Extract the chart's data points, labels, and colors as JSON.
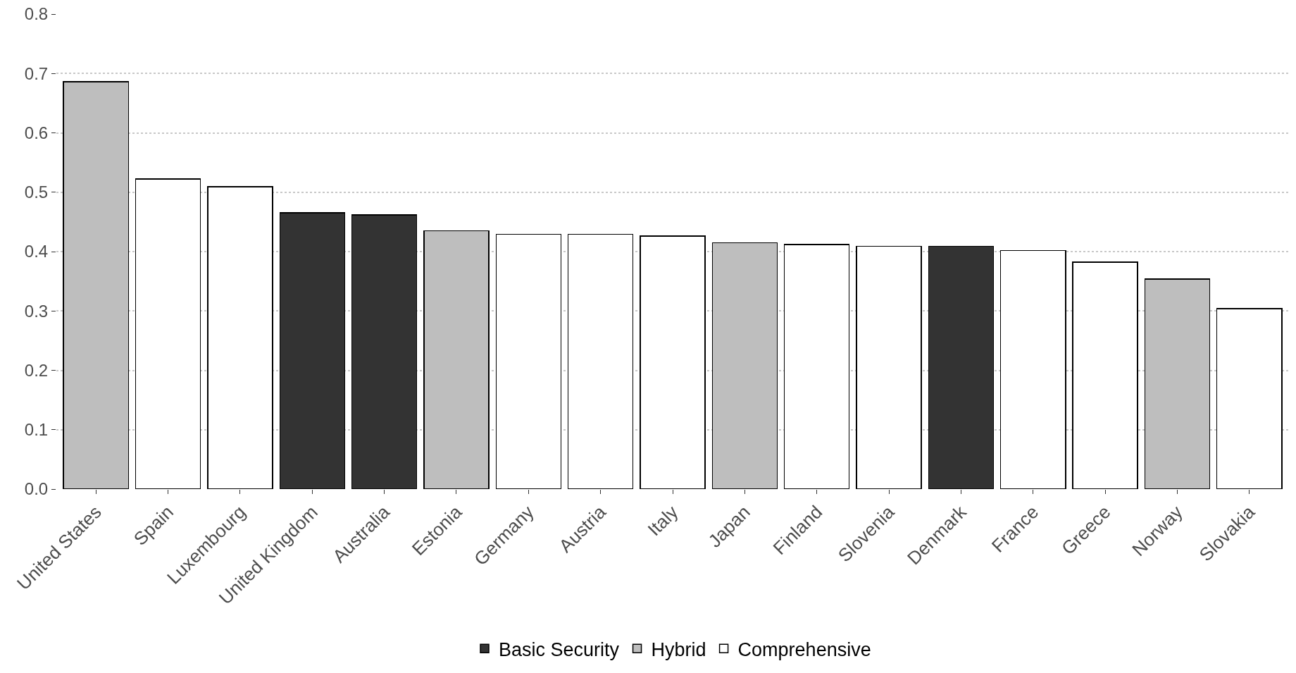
{
  "chart_data": {
    "type": "bar",
    "stacked": true,
    "categories": [
      "United States",
      "Spain",
      "Luxembourg",
      "United Kingdom",
      "Australia",
      "Estonia",
      "Germany",
      "Austria",
      "Italy",
      "Japan",
      "Finland",
      "Slovenia",
      "Denmark",
      "France",
      "Greece",
      "Norway",
      "Slovakia"
    ],
    "series": [
      {
        "name": "Basic Security",
        "color": "#333333",
        "values": [
          null,
          null,
          null,
          0.465,
          0.462,
          null,
          null,
          null,
          null,
          null,
          null,
          null,
          0.409,
          null,
          null,
          null,
          null
        ]
      },
      {
        "name": "Hybrid",
        "color": "#bebebe",
        "values": [
          0.686,
          null,
          null,
          null,
          null,
          0.435,
          null,
          null,
          null,
          0.415,
          null,
          null,
          null,
          null,
          null,
          0.354,
          null
        ]
      },
      {
        "name": "Comprehensive",
        "color": "#ffffff",
        "values": [
          null,
          0.522,
          0.509,
          null,
          null,
          null,
          0.429,
          0.429,
          0.426,
          null,
          0.412,
          0.409,
          null,
          0.402,
          0.382,
          null,
          0.304
        ]
      }
    ],
    "ylim": [
      0,
      0.8
    ],
    "yticks": [
      {
        "value": 0,
        "label": "0.0"
      },
      0.1,
      0.2,
      0.3,
      0.4,
      0.5,
      0.6,
      0.7,
      0.8
    ],
    "grid": "y",
    "legend": "bottom"
  }
}
